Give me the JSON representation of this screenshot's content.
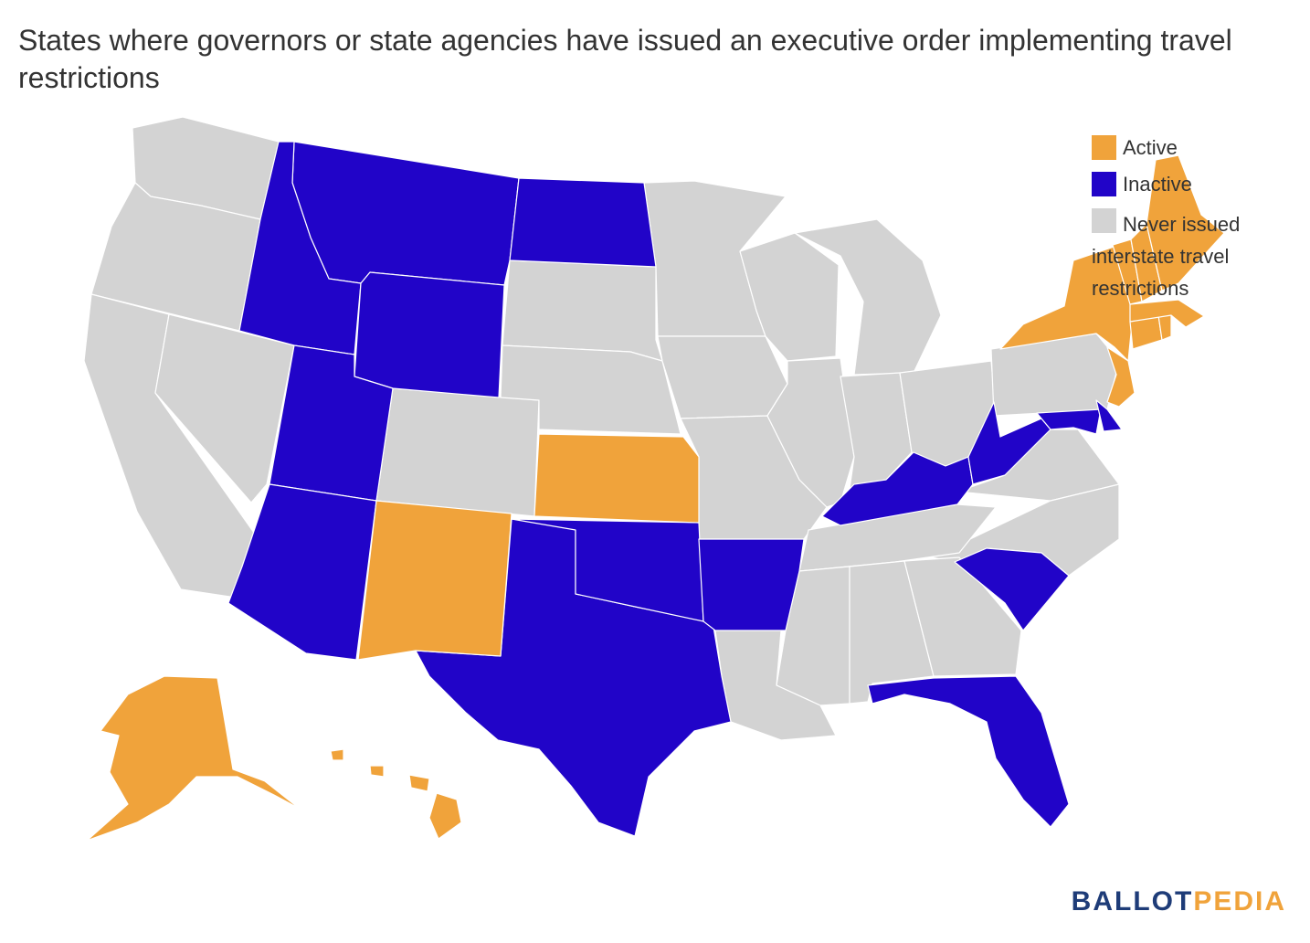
{
  "title": "States where governors or state agencies have issued an executive order implementing travel restrictions",
  "legend": [
    {
      "label": "Active",
      "color": "#f0a33b"
    },
    {
      "label": "Inactive",
      "color": "#2104c8"
    },
    {
      "label": "Never issued interstate travel restrictions",
      "color": "#d3d3d3"
    }
  ],
  "colors": {
    "active": "#f0a33b",
    "inactive": "#2104c8",
    "never": "#d3d3d3"
  },
  "states": {
    "active": [
      "New York",
      "New Jersey",
      "Connecticut",
      "Rhode Island",
      "Massachusetts",
      "Vermont",
      "New Hampshire",
      "Maine",
      "Kansas",
      "New Mexico",
      "Alaska",
      "Hawaii"
    ],
    "inactive": [
      "Montana",
      "Idaho",
      "Wyoming",
      "North Dakota",
      "Utah",
      "Arizona",
      "Texas",
      "Oklahoma",
      "Arkansas",
      "Kentucky",
      "West Virginia",
      "Maryland",
      "Delaware",
      "South Carolina",
      "Florida"
    ],
    "never": [
      "Washington",
      "Oregon",
      "California",
      "Nevada",
      "Colorado",
      "South Dakota",
      "Nebraska",
      "Minnesota",
      "Iowa",
      "Missouri",
      "Wisconsin",
      "Illinois",
      "Michigan",
      "Indiana",
      "Ohio",
      "Pennsylvania",
      "Virginia",
      "North Carolina",
      "Tennessee",
      "Mississippi",
      "Alabama",
      "Georgia",
      "Louisiana"
    ]
  },
  "brand": {
    "part1": "BALLOT",
    "part2": "PEDIA"
  }
}
